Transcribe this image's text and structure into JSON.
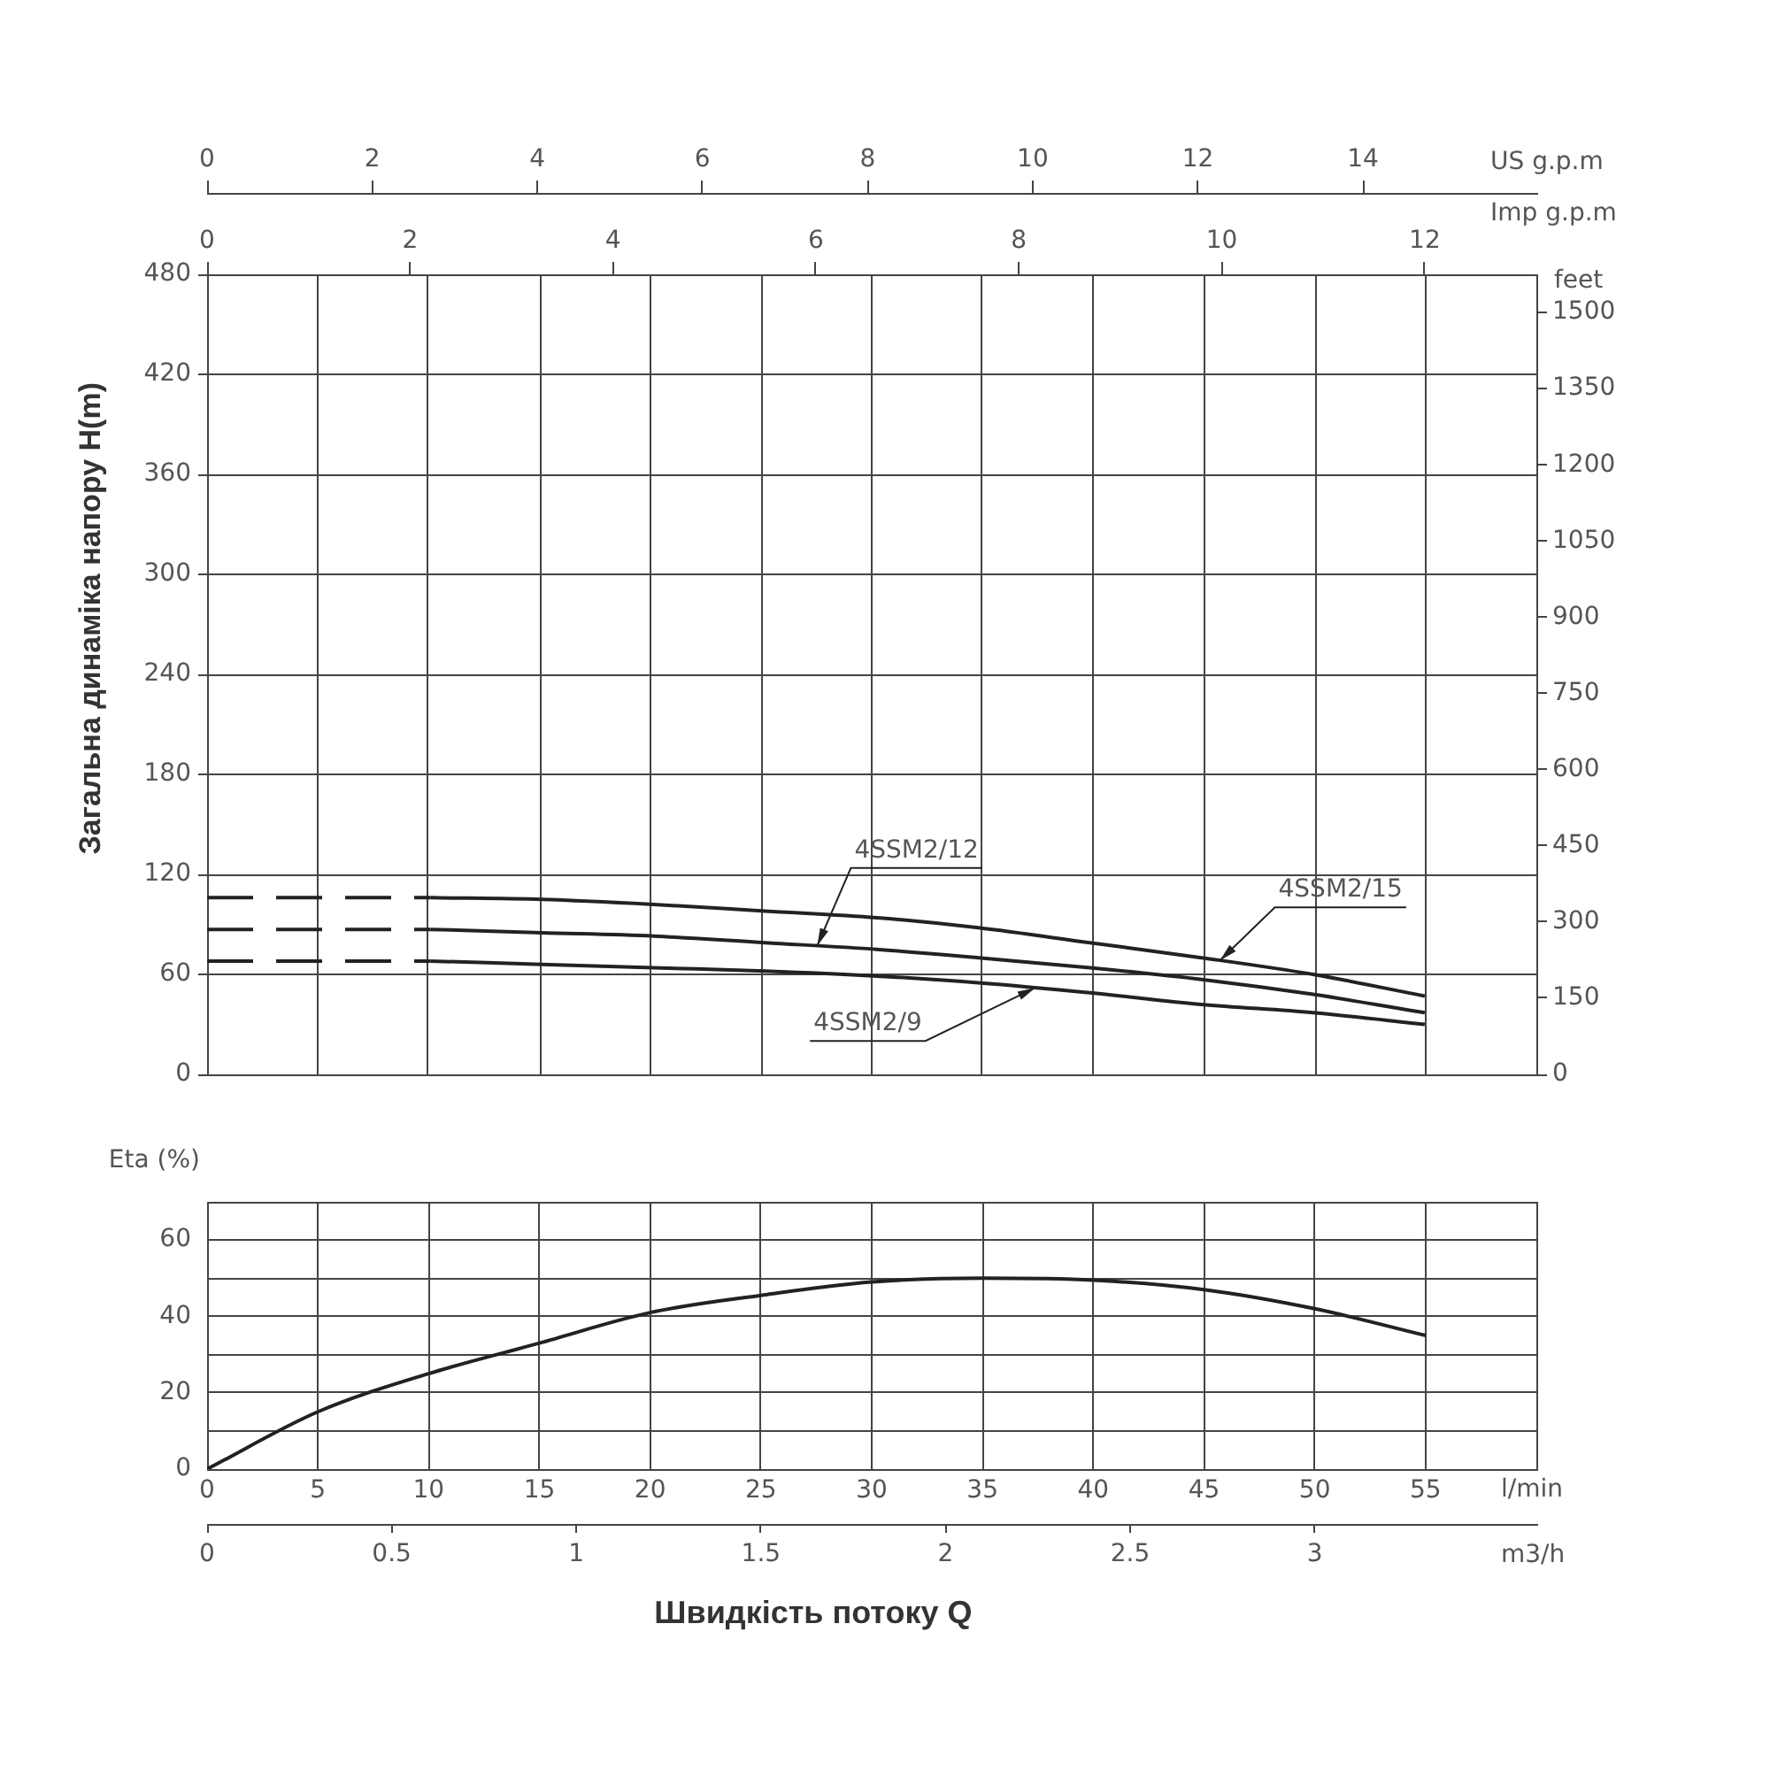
{
  "chart_data": [
    {
      "type": "line",
      "ylabel": "Загальна динаміка напору H(m)",
      "y2label": "feet",
      "xlabel": "Imp g.p.m",
      "x2label": "US g.p.m",
      "xlim": [
        0,
        13.1
      ],
      "xticks": [
        0,
        {
          "value": 1.09,
          "label": null
        },
        2,
        {
          "value": 2.18,
          "label": null
        },
        {
          "value": 3.28,
          "label": null
        },
        4,
        {
          "value": 4.37,
          "label": null
        },
        {
          "value": 5.46,
          "label": null
        },
        6,
        {
          "value": 6.55,
          "label": null
        },
        {
          "value": 7.64,
          "label": null
        },
        8,
        {
          "value": 8.73,
          "label": null
        },
        {
          "value": 9.83,
          "label": null
        },
        10,
        {
          "value": 10.92,
          "label": null
        },
        12,
        {
          "value": 12.01,
          "label": null
        },
        {
          "value": 13.1,
          "label": null
        }
      ],
      "x2lim": [
        0,
        16.1
      ],
      "x2ticks": [
        0,
        2,
        4,
        6,
        8,
        10,
        12,
        14
      ],
      "ylim": [
        0,
        480
      ],
      "yticks": [
        0,
        60,
        120,
        180,
        240,
        300,
        360,
        420,
        480
      ],
      "y2lim": [
        0,
        1575
      ],
      "y2ticks": [
        0,
        150,
        300,
        450,
        600,
        750,
        900,
        1050,
        1200,
        1350,
        1500
      ],
      "grid": true,
      "marker": "none",
      "series": [
        {
          "name": "4SSM2/15",
          "color": "#222222",
          "x": [
            2.2,
            3.3,
            4.4,
            5.5,
            6.6,
            7.6,
            8.7,
            9.8,
            10.9,
            12
          ],
          "values": [
            106,
            105,
            102,
            98,
            94,
            88,
            79,
            70,
            60,
            47
          ]
        },
        {
          "color": "#222222",
          "line_style": "dashed",
          "x": [
            0,
            2.2
          ],
          "values": [
            106,
            106
          ]
        },
        {
          "name": "4SSM2/12",
          "color": "#222222",
          "x": [
            2.2,
            3.3,
            4.4,
            5.5,
            6.6,
            7.6,
            8.7,
            9.8,
            10.9,
            12
          ],
          "values": [
            87,
            85,
            83,
            79,
            75,
            70,
            64,
            57,
            48,
            37
          ]
        },
        {
          "color": "#222222",
          "line_style": "dashed",
          "x": [
            0,
            2.2
          ],
          "values": [
            87,
            87
          ]
        },
        {
          "name": "4SSM2/9",
          "color": "#222222",
          "x": [
            2.2,
            3.3,
            4.4,
            5.5,
            6.6,
            7.6,
            8.7,
            9.8,
            10.9,
            12
          ],
          "values": [
            68,
            66,
            64,
            62,
            59,
            55,
            49,
            42,
            37,
            30
          ]
        },
        {
          "color": "#222222",
          "line_style": "dashed",
          "x": [
            0,
            2.2
          ],
          "values": [
            68,
            68
          ]
        }
      ]
    },
    {
      "type": "line",
      "ylabel": "Eta (%)",
      "xlabel": "l/min",
      "x2label": "m3/h",
      "annotations": [
        "Швидкість потоку Q"
      ],
      "xlim": [
        0,
        60
      ],
      "xticks": [
        0,
        5,
        10,
        15,
        20,
        25,
        30,
        35,
        40,
        45,
        50,
        55,
        {
          "value": 60,
          "label": null
        }
      ],
      "x2lim": [
        0,
        3.6
      ],
      "x2ticks": [
        0,
        0.5,
        1,
        1.5,
        2,
        2.5,
        3
      ],
      "ylim": [
        0,
        70
      ],
      "yticks": [
        0,
        {
          "value": 10,
          "label": null
        },
        20,
        {
          "value": 30,
          "label": null
        },
        40,
        {
          "value": 50,
          "label": null
        },
        60,
        {
          "value": 70,
          "label": null
        }
      ],
      "grid": true,
      "marker": "none",
      "series": [
        {
          "color": "#222222",
          "x": [
            0,
            5,
            10,
            15,
            20,
            25,
            30,
            35,
            40,
            45,
            50,
            55
          ],
          "values": [
            0,
            15,
            25,
            33,
            41,
            45.5,
            49,
            50,
            49.5,
            47,
            42,
            35
          ]
        }
      ]
    }
  ]
}
